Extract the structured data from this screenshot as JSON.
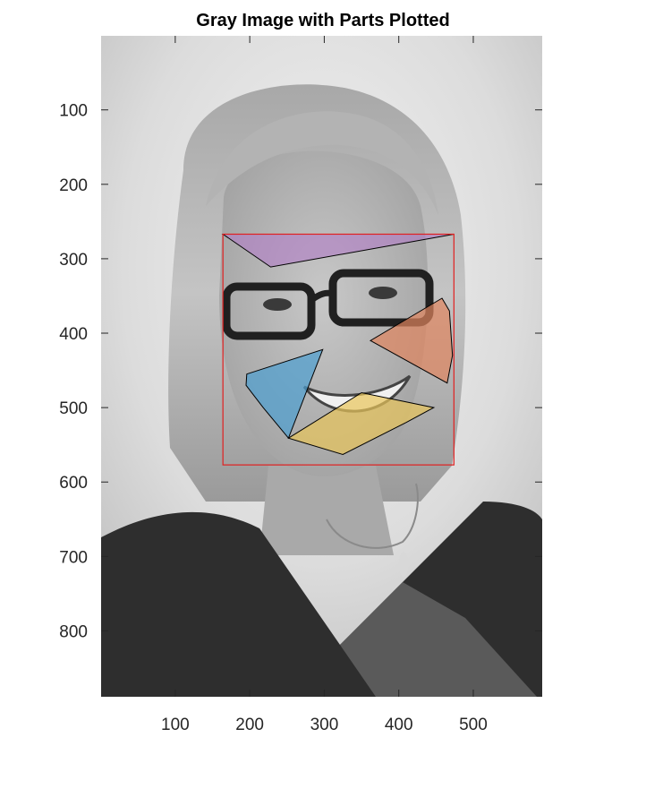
{
  "chart_data": {
    "type": "image",
    "title": "Gray Image with Parts Plotted",
    "xlabel": "",
    "ylabel": "",
    "xlim": [
      0.5,
      592.5
    ],
    "ylim": [
      0.5,
      888.5
    ],
    "y_direction": "reverse",
    "x_ticks": [
      100,
      200,
      300,
      400,
      500
    ],
    "y_ticks": [
      100,
      200,
      300,
      400,
      500,
      600,
      700,
      800
    ],
    "grid": false,
    "legend": "none",
    "image": {
      "description": "grayscale portrait photograph",
      "colormap": "gray"
    },
    "bounding_box": {
      "x": [
        164,
        474
      ],
      "y": [
        267,
        577
      ],
      "color": "#e02020"
    },
    "parts": [
      {
        "color": "#b07cc6",
        "alpha": 0.6,
        "vertices": [
          [
            164,
            267
          ],
          [
            474,
            267
          ],
          [
            228,
            311
          ]
        ]
      },
      {
        "color": "#e0855e",
        "alpha": 0.7,
        "vertices": [
          [
            458,
            353
          ],
          [
            468,
            370
          ],
          [
            472,
            430
          ],
          [
            465,
            467
          ],
          [
            362,
            410
          ]
        ]
      },
      {
        "color": "#4c9ed0",
        "alpha": 0.7,
        "vertices": [
          [
            196,
            455
          ],
          [
            298,
            422
          ],
          [
            252,
            541
          ],
          [
            218,
            500
          ],
          [
            195,
            470
          ]
        ]
      },
      {
        "color": "#e8c45a",
        "alpha": 0.7,
        "vertices": [
          [
            252,
            541
          ],
          [
            350,
            480
          ],
          [
            447,
            500
          ],
          [
            410,
            520
          ],
          [
            325,
            563
          ]
        ]
      }
    ]
  }
}
